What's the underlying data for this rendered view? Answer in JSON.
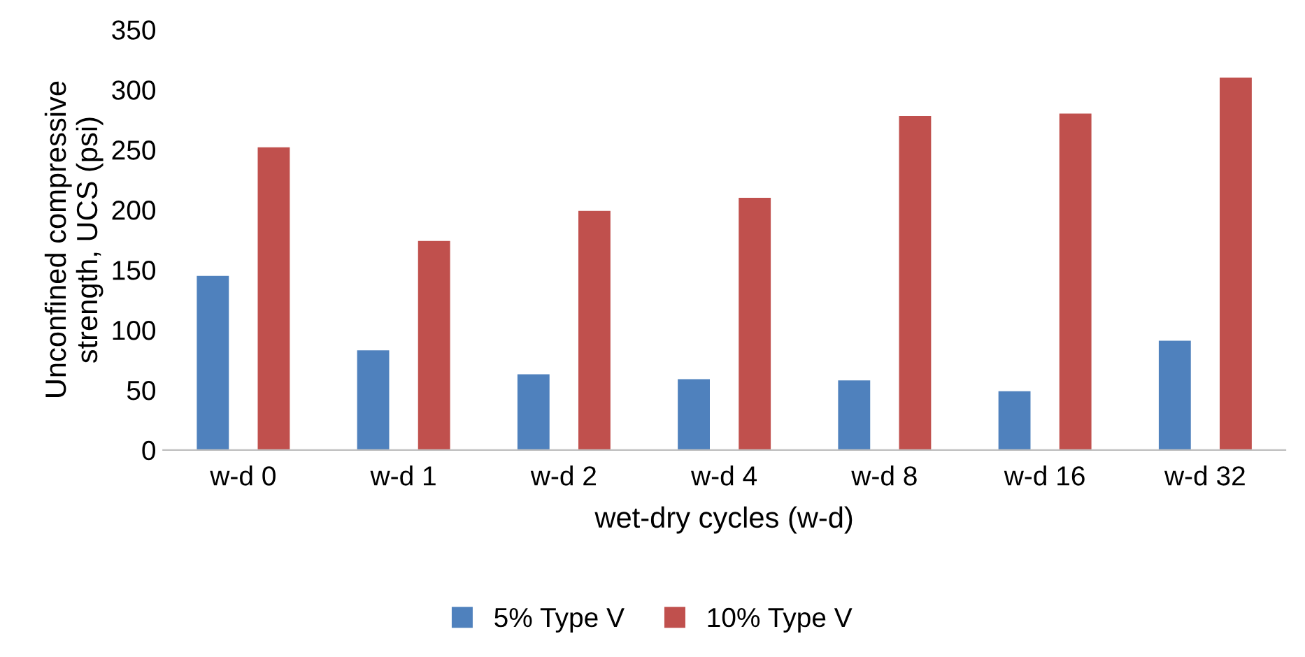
{
  "chart_data": {
    "type": "bar",
    "xlabel": "wet-dry cycles (w-d)",
    "ylabel": "Unconfined compressive\nstrength, UCS (psi)",
    "categories": [
      "w-d 0",
      "w-d 1",
      "w-d 2",
      "w-d 4",
      "w-d 8",
      "w-d 16",
      "w-d 32"
    ],
    "series": [
      {
        "name": "5% Type V",
        "color": "#4f81bd",
        "values": [
          145,
          83,
          63,
          59,
          58,
          49,
          91
        ]
      },
      {
        "name": "10% Type V",
        "color": "#c0504d",
        "values": [
          252,
          174,
          199,
          210,
          278,
          280,
          310
        ]
      }
    ],
    "ylim": [
      0,
      350
    ],
    "yticks": [
      0,
      50,
      100,
      150,
      200,
      250,
      300,
      350
    ],
    "grid": false,
    "legend": "bottom"
  }
}
